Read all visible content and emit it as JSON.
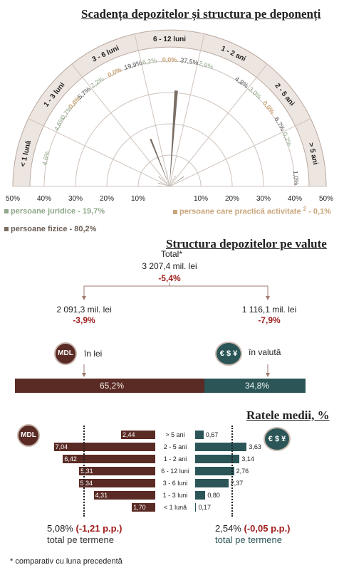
{
  "chart_data": [
    {
      "type": "radial-bar",
      "title": "Scadența depozitelor și structura pe deponenți",
      "categories": [
        "< 1 lună",
        "1 - 3 luni",
        "3 - 6 luni",
        "6 - 12 luni",
        "1 - 2 ani",
        "2 - 5 ani",
        "> 5 ani"
      ],
      "label_values": [
        [
          "4,6%"
        ],
        [
          "4,6%",
          "0,7%",
          "0,0%",
          "5,7%"
        ],
        [
          "2,2%",
          "0,0%",
          "19,9%"
        ],
        [
          "6,2%",
          "0,0%",
          "37,5%"
        ],
        [
          "2,9%",
          "4,8%"
        ],
        [
          "3,0%",
          "0,0%",
          "6,7%"
        ],
        [
          "0,2%",
          "1,0%"
        ]
      ],
      "series": [
        {
          "name": "persoane fizice - 80,2%",
          "values": [
            4.6,
            5.7,
            19.9,
            37.5,
            4.8,
            6.7,
            1.0
          ]
        },
        {
          "name": "persoane juridice - 19,7%",
          "values": [
            4.6,
            0.7,
            2.2,
            6.2,
            2.9,
            3.0,
            0.2
          ]
        },
        {
          "name": "persoane care practică activitate",
          "values": [
            0.0,
            0.0,
            0.0,
            0.0,
            0.0,
            0.0,
            0.0
          ]
        }
      ],
      "legend_sup": "2",
      "legend_suffix": "- 0,1%",
      "axis_ticks": [
        "50%",
        "40%",
        "30%",
        "20%",
        "10%",
        "10%",
        "20%",
        "30%",
        "40%",
        "50%"
      ]
    },
    {
      "type": "bar",
      "title": "Structura depozitelor pe valute",
      "total_label": "Total*",
      "total_value": "3 207,4 mil. lei",
      "total_change": "-5,4%",
      "left": {
        "value": "2 091,3 mil. lei",
        "change": "-3,9%",
        "label": "în lei",
        "share": 65.2,
        "share_label": "65,2%"
      },
      "right": {
        "value": "1 116,1 mil. lei",
        "change": "-7,9%",
        "label": "în valută",
        "share": 34.8,
        "share_label": "34,8%"
      }
    },
    {
      "type": "bar",
      "title": "Ratele medii, %",
      "categories": [
        "> 5 ani",
        "2 - 5 ani",
        "1 - 2 ani",
        "6 - 12 luni",
        "3 - 6 luni",
        "1 - 3 luni",
        "< 1 lună"
      ],
      "lei": [
        2.44,
        7.04,
        6.42,
        5.31,
        5.34,
        4.31,
        1.7
      ],
      "lei_labels": [
        "2,44",
        "7,04",
        "6,42",
        "5,31",
        "5,34",
        "4,31",
        "1,70"
      ],
      "fx": [
        0.67,
        3.63,
        3.14,
        2.76,
        2.37,
        0.8,
        0.17
      ],
      "fx_labels": [
        "0,67",
        "3,63",
        "3,14",
        "2,76",
        "2,37",
        "0,80",
        "0,17"
      ],
      "lei_total": "5,08%",
      "lei_change": "(-1,21 p.p.)",
      "fx_total": "2,54%",
      "fx_change": "(-0,05 p.p.)",
      "total_label": "total pe termene"
    }
  ],
  "badges": {
    "mdl": "MDL",
    "fx": "€ $ ¥"
  },
  "footnote": "* comparativ cu luna precedentă",
  "colors": {
    "dark": "#5a2a24",
    "teal": "#2b5556",
    "fizice": "#7a6e64",
    "juridice": "#8fa88a",
    "activ": "#c9a57a"
  }
}
